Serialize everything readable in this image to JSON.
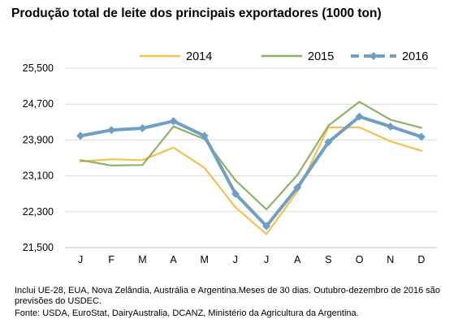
{
  "title": "Produção total de leite dos principais exportadores (1000 ton)",
  "chart_data": {
    "type": "line",
    "title": "Produção total de leite dos principais exportadores (1000 ton)",
    "categories": [
      "J",
      "F",
      "M",
      "A",
      "M",
      "J",
      "J",
      "A",
      "S",
      "O",
      "N",
      "D"
    ],
    "y_ticks": [
      "25,500",
      "24,700",
      "23,900",
      "23,100",
      "22,300",
      "21,500"
    ],
    "ylim": [
      21500,
      25500
    ],
    "grid": true,
    "legend_position": "top",
    "series": [
      {
        "name": "2014",
        "color": "#F2C14E",
        "values": [
          23420,
          23470,
          23450,
          23730,
          23280,
          22400,
          21800,
          22750,
          24180,
          24180,
          23870,
          23660
        ]
      },
      {
        "name": "2015",
        "color": "#8FB26A",
        "values": [
          23450,
          23330,
          23340,
          24200,
          23920,
          23000,
          22350,
          23120,
          24220,
          24750,
          24350,
          24170
        ]
      },
      {
        "name": "2016",
        "color": "#6F9FC4",
        "values": [
          23990,
          24120,
          24160,
          24320,
          23990,
          22700,
          21980,
          22840,
          23850,
          24420,
          24200,
          23970
        ]
      }
    ]
  },
  "notes": {
    "line1": "Inclui UE-28, EUA, Nova Zelândia, Austrália e Argentina.Meses de 30 dias. Outubro-dezembro de 2016 são previsões do USDEC.",
    "line2": "Fonte: USDA, EuroStat, DairyAustralia, DCANZ, Ministério da Agricultura da Argentina."
  }
}
